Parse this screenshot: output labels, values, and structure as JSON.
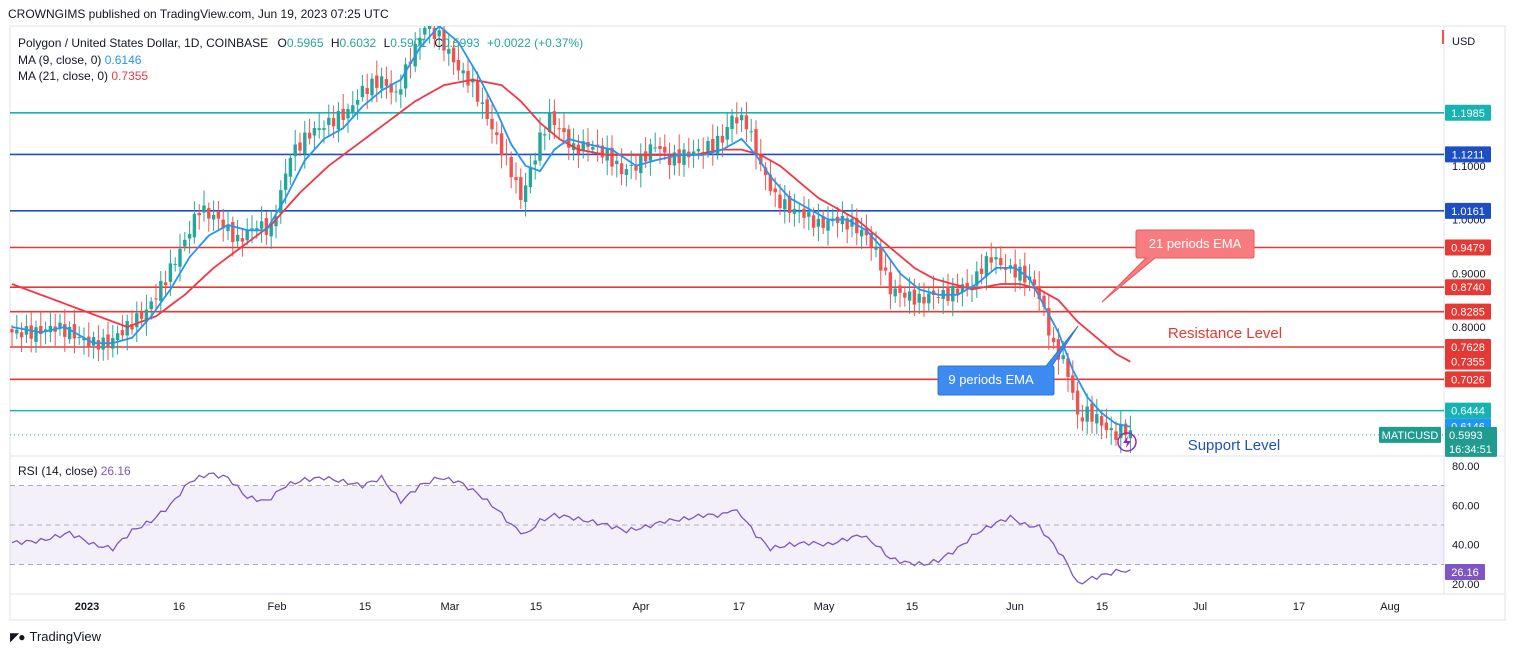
{
  "header": {
    "published": "CROWNGIMS published on TradingView.com, Jun 19, 2023 07:25 UTC"
  },
  "footer": {
    "brand": "TradingView",
    "logo": "tradingview-logo-icon"
  },
  "legend": {
    "symbol": "Polygon / United States Dollar, 1D, COINBASE",
    "o": "0.5965",
    "h": "0.6032",
    "l": "0.5901",
    "c": "0.5993",
    "chg": "+0.0022 (+0.37%)",
    "ma9": "MA (9, close, 0)",
    "ma9_val": "0.6146",
    "ma21": "MA (21, close, 0)",
    "ma21_val": "0.7355",
    "rsi": "RSI (14, close)",
    "rsi_val": "26.16"
  },
  "colors": {
    "up": "#26a69a",
    "down": "#ef5350",
    "ma9": "#2196f3",
    "ma21": "#f23645",
    "red_level": "#e53935",
    "blue_level": "#1e4fc2",
    "teal_level": "#17b3b3",
    "rsi": "#7e57c2"
  },
  "chart_data": [
    {
      "type": "candlestick",
      "currency": "USD",
      "ylim": [
        0.56,
        1.36
      ],
      "y_ticks": [
        0.8,
        0.9,
        1.0,
        1.1
      ],
      "x_ticks": [
        "2023",
        "16",
        "Feb",
        "15",
        "Mar",
        "15",
        "Apr",
        "17",
        "May",
        "15",
        "Jun",
        "15",
        "Jul",
        "17",
        "Aug"
      ],
      "last_price": 0.5993,
      "countdown": "16:34:51",
      "symbol_tag": "MATICUSD",
      "levels": [
        {
          "value": 1.1985,
          "label": "1.1985",
          "kind": "teal"
        },
        {
          "value": 1.1211,
          "label": "1.1211",
          "kind": "blue"
        },
        {
          "value": 1.0161,
          "label": "1.0161",
          "kind": "blue"
        },
        {
          "value": 0.9479,
          "label": "0.9479",
          "kind": "red"
        },
        {
          "value": 0.874,
          "label": "0.8740",
          "kind": "red"
        },
        {
          "value": 0.8285,
          "label": "0.8285",
          "kind": "red"
        },
        {
          "value": 0.7628,
          "label": "0.7628",
          "kind": "red"
        },
        {
          "value": 0.7026,
          "label": "0.7026",
          "kind": "red"
        },
        {
          "value": 0.6444,
          "label": "0.6444",
          "kind": "teal"
        }
      ],
      "ma_tags": [
        {
          "value": 0.7355,
          "label": "0.7355",
          "kind": "ma21"
        },
        {
          "value": 0.6146,
          "label": "0.6146",
          "kind": "ma9"
        }
      ],
      "annotations": {
        "ema21": "21 periods EMA",
        "ema9": "9 periods EMA",
        "resistance": "Resistance Level",
        "support": "Support Level"
      },
      "close_anchors": [
        [
          0,
          0.79
        ],
        [
          5,
          0.79
        ],
        [
          9,
          0.8
        ],
        [
          12,
          0.79
        ],
        [
          16,
          0.77
        ],
        [
          20,
          0.77
        ],
        [
          24,
          0.8
        ],
        [
          28,
          0.83
        ],
        [
          32,
          0.89
        ],
        [
          36,
          0.96
        ],
        [
          39,
          1.02
        ],
        [
          43,
          1.0
        ],
        [
          47,
          0.96
        ],
        [
          51,
          0.99
        ],
        [
          54,
          0.98
        ],
        [
          58,
          1.12
        ],
        [
          62,
          1.16
        ],
        [
          66,
          1.18
        ],
        [
          70,
          1.2
        ],
        [
          73,
          1.24
        ],
        [
          77,
          1.26
        ],
        [
          80,
          1.23
        ],
        [
          83,
          1.3
        ],
        [
          86,
          1.36
        ],
        [
          89,
          1.34
        ],
        [
          93,
          1.28
        ],
        [
          96,
          1.25
        ],
        [
          99,
          1.19
        ],
        [
          102,
          1.13
        ],
        [
          104,
          1.09
        ],
        [
          106,
          1.04
        ],
        [
          108,
          1.09
        ],
        [
          110,
          1.15
        ],
        [
          112,
          1.19
        ],
        [
          114,
          1.17
        ],
        [
          117,
          1.13
        ],
        [
          120,
          1.14
        ],
        [
          124,
          1.12
        ],
        [
          127,
          1.09
        ],
        [
          130,
          1.1
        ],
        [
          134,
          1.14
        ],
        [
          137,
          1.11
        ],
        [
          140,
          1.12
        ],
        [
          144,
          1.13
        ],
        [
          148,
          1.15
        ],
        [
          150,
          1.19
        ],
        [
          153,
          1.18
        ],
        [
          156,
          1.1
        ],
        [
          159,
          1.04
        ],
        [
          162,
          1.02
        ],
        [
          165,
          1.01
        ],
        [
          168,
          0.99
        ],
        [
          172,
          1.0
        ],
        [
          175,
          0.99
        ],
        [
          178,
          0.97
        ],
        [
          180,
          0.94
        ],
        [
          183,
          0.87
        ],
        [
          186,
          0.86
        ],
        [
          189,
          0.85
        ],
        [
          192,
          0.86
        ],
        [
          195,
          0.86
        ],
        [
          197,
          0.87
        ],
        [
          200,
          0.88
        ],
        [
          202,
          0.91
        ],
        [
          204,
          0.93
        ],
        [
          207,
          0.91
        ],
        [
          210,
          0.9
        ],
        [
          213,
          0.88
        ],
        [
          215,
          0.83
        ],
        [
          217,
          0.76
        ],
        [
          219,
          0.74
        ],
        [
          221,
          0.68
        ],
        [
          222,
          0.63
        ],
        [
          224,
          0.64
        ],
        [
          226,
          0.63
        ],
        [
          228,
          0.61
        ],
        [
          230,
          0.6
        ],
        [
          232,
          0.61
        ],
        [
          233,
          0.5993
        ]
      ],
      "ma9_anchors": [
        [
          0,
          0.8
        ],
        [
          6,
          0.79
        ],
        [
          11,
          0.8
        ],
        [
          17,
          0.77
        ],
        [
          21,
          0.77
        ],
        [
          25,
          0.78
        ],
        [
          29,
          0.82
        ],
        [
          33,
          0.87
        ],
        [
          37,
          0.93
        ],
        [
          41,
          0.97
        ],
        [
          45,
          0.99
        ],
        [
          49,
          0.98
        ],
        [
          53,
          0.98
        ],
        [
          57,
          1.04
        ],
        [
          61,
          1.11
        ],
        [
          65,
          1.15
        ],
        [
          69,
          1.17
        ],
        [
          73,
          1.21
        ],
        [
          77,
          1.24
        ],
        [
          81,
          1.26
        ],
        [
          85,
          1.32
        ],
        [
          89,
          1.36
        ],
        [
          93,
          1.33
        ],
        [
          97,
          1.27
        ],
        [
          101,
          1.2
        ],
        [
          104,
          1.14
        ],
        [
          107,
          1.1
        ],
        [
          110,
          1.09
        ],
        [
          113,
          1.13
        ],
        [
          116,
          1.15
        ],
        [
          120,
          1.14
        ],
        [
          125,
          1.13
        ],
        [
          130,
          1.1
        ],
        [
          134,
          1.11
        ],
        [
          139,
          1.12
        ],
        [
          144,
          1.12
        ],
        [
          148,
          1.13
        ],
        [
          152,
          1.15
        ],
        [
          155,
          1.12
        ],
        [
          158,
          1.08
        ],
        [
          162,
          1.04
        ],
        [
          166,
          1.02
        ],
        [
          170,
          1.0
        ],
        [
          174,
          1.0
        ],
        [
          178,
          0.98
        ],
        [
          181,
          0.95
        ],
        [
          185,
          0.9
        ],
        [
          189,
          0.87
        ],
        [
          193,
          0.86
        ],
        [
          197,
          0.86
        ],
        [
          201,
          0.88
        ],
        [
          205,
          0.91
        ],
        [
          209,
          0.91
        ],
        [
          212,
          0.89
        ],
        [
          215,
          0.84
        ],
        [
          218,
          0.79
        ],
        [
          221,
          0.72
        ],
        [
          224,
          0.67
        ],
        [
          227,
          0.64
        ],
        [
          230,
          0.62
        ],
        [
          233,
          0.6146
        ]
      ],
      "ma21_anchors": [
        [
          0,
          0.88
        ],
        [
          6,
          0.86
        ],
        [
          12,
          0.84
        ],
        [
          18,
          0.82
        ],
        [
          24,
          0.8
        ],
        [
          30,
          0.82
        ],
        [
          36,
          0.86
        ],
        [
          42,
          0.91
        ],
        [
          48,
          0.95
        ],
        [
          54,
          0.99
        ],
        [
          60,
          1.05
        ],
        [
          66,
          1.1
        ],
        [
          72,
          1.14
        ],
        [
          78,
          1.18
        ],
        [
          84,
          1.22
        ],
        [
          90,
          1.25
        ],
        [
          96,
          1.26
        ],
        [
          102,
          1.25
        ],
        [
          106,
          1.22
        ],
        [
          110,
          1.18
        ],
        [
          114,
          1.15
        ],
        [
          118,
          1.13
        ],
        [
          124,
          1.12
        ],
        [
          130,
          1.12
        ],
        [
          136,
          1.12
        ],
        [
          142,
          1.12
        ],
        [
          148,
          1.13
        ],
        [
          152,
          1.13
        ],
        [
          156,
          1.12
        ],
        [
          160,
          1.1
        ],
        [
          164,
          1.07
        ],
        [
          168,
          1.04
        ],
        [
          172,
          1.02
        ],
        [
          176,
          1.0
        ],
        [
          180,
          0.97
        ],
        [
          184,
          0.94
        ],
        [
          188,
          0.91
        ],
        [
          192,
          0.89
        ],
        [
          196,
          0.88
        ],
        [
          200,
          0.87
        ],
        [
          206,
          0.88
        ],
        [
          210,
          0.88
        ],
        [
          214,
          0.87
        ],
        [
          218,
          0.85
        ],
        [
          222,
          0.81
        ],
        [
          226,
          0.78
        ],
        [
          230,
          0.75
        ],
        [
          233,
          0.7355
        ]
      ]
    },
    {
      "type": "line",
      "title": "RSI (14, close)",
      "ylim": [
        15,
        85
      ],
      "y_ticks": [
        20,
        40,
        60,
        80
      ],
      "bands": [
        30,
        50,
        70
      ],
      "last_value": 26.16,
      "rsi_anchors": [
        [
          0,
          41
        ],
        [
          6,
          42
        ],
        [
          12,
          46
        ],
        [
          17,
          40
        ],
        [
          21,
          38
        ],
        [
          25,
          47
        ],
        [
          29,
          52
        ],
        [
          33,
          60
        ],
        [
          37,
          72
        ],
        [
          41,
          76
        ],
        [
          45,
          74
        ],
        [
          49,
          64
        ],
        [
          53,
          62
        ],
        [
          57,
          70
        ],
        [
          61,
          73
        ],
        [
          65,
          74
        ],
        [
          69,
          72
        ],
        [
          73,
          70
        ],
        [
          77,
          74
        ],
        [
          81,
          62
        ],
        [
          85,
          70
        ],
        [
          89,
          74
        ],
        [
          93,
          72
        ],
        [
          97,
          66
        ],
        [
          101,
          58
        ],
        [
          104,
          50
        ],
        [
          107,
          45
        ],
        [
          110,
          52
        ],
        [
          113,
          55
        ],
        [
          116,
          54
        ],
        [
          120,
          52
        ],
        [
          124,
          50
        ],
        [
          128,
          47
        ],
        [
          132,
          49
        ],
        [
          136,
          52
        ],
        [
          140,
          53
        ],
        [
          144,
          55
        ],
        [
          148,
          55
        ],
        [
          150,
          58
        ],
        [
          152,
          55
        ],
        [
          155,
          45
        ],
        [
          158,
          38
        ],
        [
          162,
          40
        ],
        [
          166,
          41
        ],
        [
          170,
          40
        ],
        [
          174,
          43
        ],
        [
          177,
          45
        ],
        [
          180,
          40
        ],
        [
          183,
          33
        ],
        [
          186,
          31
        ],
        [
          190,
          30
        ],
        [
          193,
          32
        ],
        [
          197,
          38
        ],
        [
          201,
          46
        ],
        [
          205,
          51
        ],
        [
          208,
          54
        ],
        [
          211,
          50
        ],
        [
          214,
          49
        ],
        [
          217,
          40
        ],
        [
          220,
          30
        ],
        [
          222,
          20
        ],
        [
          225,
          23
        ],
        [
          228,
          25
        ],
        [
          231,
          27
        ],
        [
          233,
          26.16
        ]
      ]
    }
  ]
}
